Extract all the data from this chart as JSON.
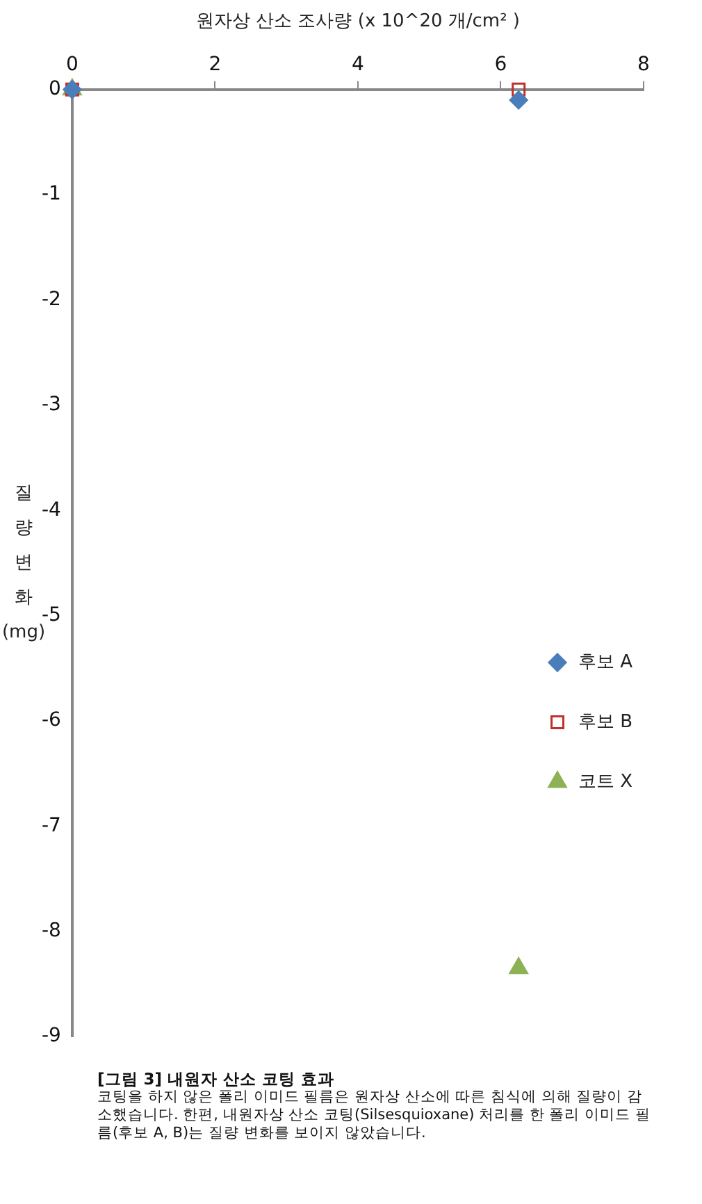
{
  "chart_data": {
    "type": "scatter",
    "title": "[그림 3] 내원자 산소 코팅 효과",
    "xlabel": "원자상 산소 조사량 (x 10^20 개/cm² )",
    "ylabel": "질량변화(mg)",
    "x": [
      0,
      6.25
    ],
    "series": [
      {
        "name": "후보 A",
        "color": "#4a7ebb",
        "marker": "diamond",
        "values": [
          0,
          -0.1
        ]
      },
      {
        "name": "후보 B",
        "color": "#c0302a",
        "marker": "square",
        "values": [
          0,
          0
        ]
      },
      {
        "name": "코트 X",
        "color": "#8db255",
        "marker": "triangle",
        "values": [
          0,
          -8.35
        ]
      }
    ],
    "xlim": [
      0,
      8
    ],
    "xticks": [
      0,
      2,
      4,
      6,
      8
    ],
    "ylim": [
      -9,
      0
    ],
    "yticks": [
      0,
      -1,
      -2,
      -3,
      -4,
      -5,
      -6,
      -7,
      -8,
      -9
    ],
    "grid": false,
    "legend": "right",
    "annotations": [
      "코팅을 하지 않은 폴리 이미드 필름은 원자상 산소에 따른 침식에 의해 질량이 감소했습니다. 한편, 내원자상 산소 코팅(Silsesquioxane) 처리를 한 폴리 이미드 필름(후보 A, B)는 질량 변화를 보이지 않았습니다."
    ]
  }
}
